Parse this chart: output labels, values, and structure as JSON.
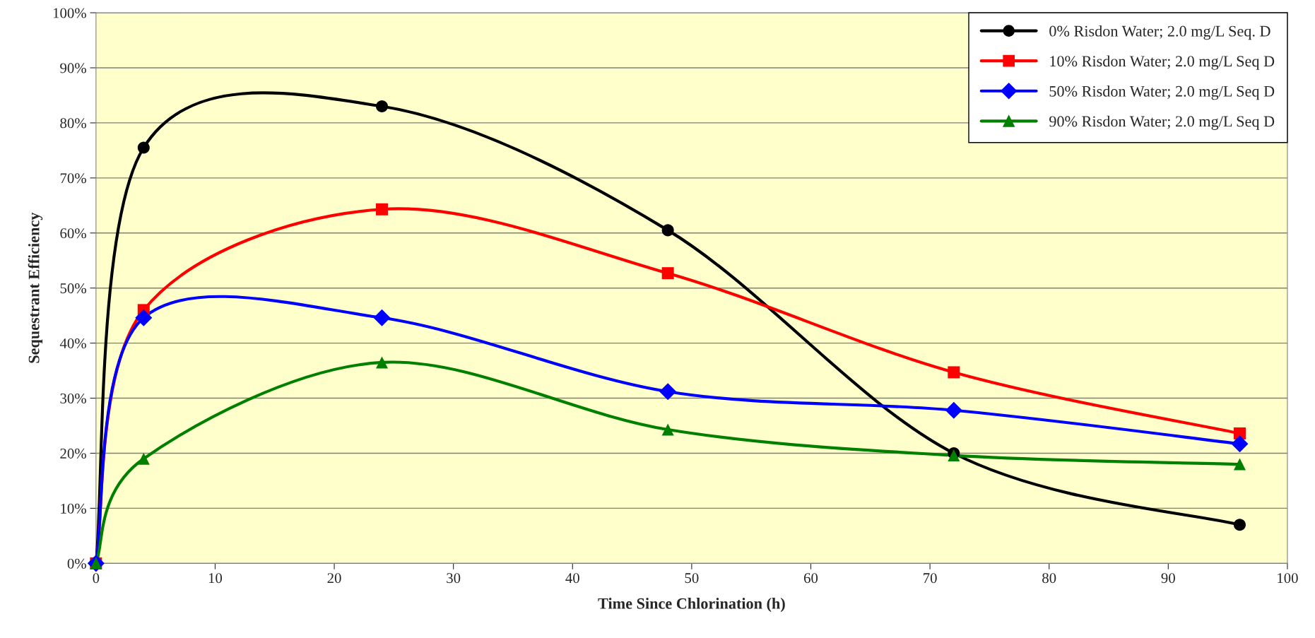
{
  "chart_data": {
    "type": "line",
    "xlabel": "Time Since Chlorination (h)",
    "ylabel": "Sequestrant Efficiency",
    "x": [
      0,
      4,
      24,
      48,
      72,
      96
    ],
    "xlim": [
      0,
      100
    ],
    "xticks": [
      0,
      10,
      20,
      30,
      40,
      50,
      60,
      70,
      80,
      90,
      100
    ],
    "ylim": [
      0,
      100
    ],
    "yticks": [
      {
        "value": 0,
        "label": "0%"
      },
      {
        "value": 10,
        "label": "10%"
      },
      {
        "value": 20,
        "label": "20%"
      },
      {
        "value": 30,
        "label": "30%"
      },
      {
        "value": 40,
        "label": "40%"
      },
      {
        "value": 50,
        "label": "50%"
      },
      {
        "value": 60,
        "label": "60%"
      },
      {
        "value": 70,
        "label": "70%"
      },
      {
        "value": 80,
        "label": "80%"
      },
      {
        "value": 90,
        "label": "90%"
      },
      {
        "value": 100,
        "label": "100%"
      }
    ],
    "grid": "y",
    "legend": "top right",
    "line_style": "solid",
    "series": [
      {
        "name": "0% Risdon Water; 2.0 mg/L Seq. D",
        "color": "#000000",
        "marker": "circle",
        "values": [
          0,
          75.5,
          83,
          60.5,
          20,
          7
        ]
      },
      {
        "name": "10% Risdon Water; 2.0 mg/L Seq D",
        "color": "#ff0000",
        "marker": "square",
        "values": [
          0,
          46,
          64.3,
          52.7,
          34.7,
          23.6
        ]
      },
      {
        "name": "50% Risdon Water; 2.0 mg/L Seq D",
        "color": "#0000ff",
        "marker": "diamond",
        "values": [
          0,
          44.6,
          44.6,
          31.2,
          27.8,
          21.7
        ]
      },
      {
        "name": "90% Risdon Water; 2.0 mg/L Seq D",
        "color": "#008000",
        "marker": "triangle",
        "values": [
          0,
          19,
          36.5,
          24.3,
          19.6,
          18
        ]
      }
    ]
  }
}
